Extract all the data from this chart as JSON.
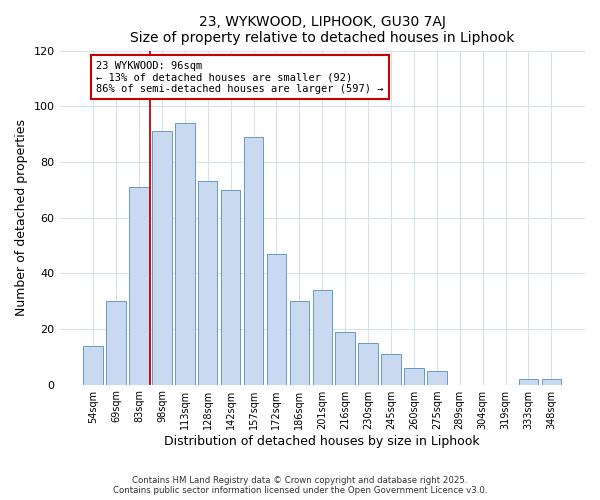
{
  "title": "23, WYKWOOD, LIPHOOK, GU30 7AJ",
  "subtitle": "Size of property relative to detached houses in Liphook",
  "xlabel": "Distribution of detached houses by size in Liphook",
  "ylabel": "Number of detached properties",
  "bar_labels": [
    "54sqm",
    "69sqm",
    "83sqm",
    "98sqm",
    "113sqm",
    "128sqm",
    "142sqm",
    "157sqm",
    "172sqm",
    "186sqm",
    "201sqm",
    "216sqm",
    "230sqm",
    "245sqm",
    "260sqm",
    "275sqm",
    "289sqm",
    "304sqm",
    "319sqm",
    "333sqm",
    "348sqm"
  ],
  "bar_heights": [
    14,
    30,
    71,
    91,
    94,
    73,
    70,
    89,
    47,
    30,
    34,
    19,
    15,
    11,
    6,
    5,
    0,
    0,
    0,
    2,
    2
  ],
  "bar_color": "#c8d9f0",
  "bar_edge_color": "#6699cc",
  "ylim": [
    0,
    120
  ],
  "yticks": [
    0,
    20,
    40,
    60,
    80,
    100,
    120
  ],
  "vline_color": "#cc0000",
  "vline_position": 2.5,
  "annotation_title": "23 WYKWOOD: 96sqm",
  "annotation_line1": "← 13% of detached houses are smaller (92)",
  "annotation_line2": "86% of semi-detached houses are larger (597) →",
  "annotation_box_color": "#ffffff",
  "annotation_box_edge": "#cc0000",
  "footer": "Contains HM Land Registry data © Crown copyright and database right 2025.\nContains public sector information licensed under the Open Government Licence v3.0.",
  "background_color": "#ffffff",
  "plot_background": "#ffffff",
  "grid_color": "#d8e0e8"
}
